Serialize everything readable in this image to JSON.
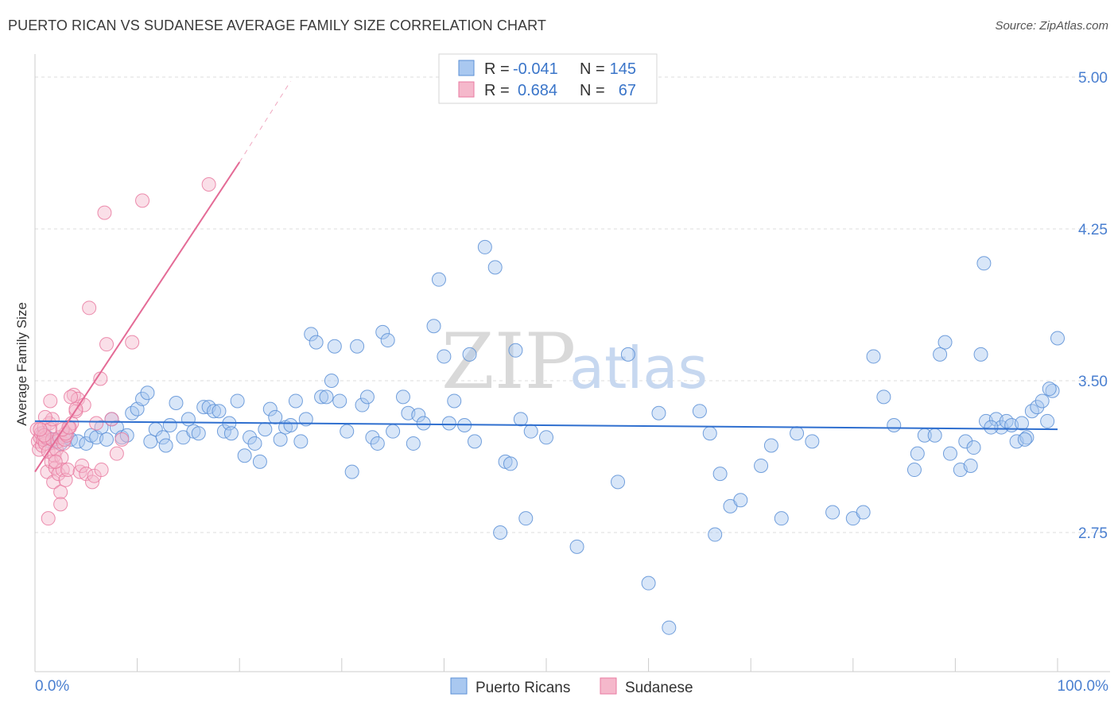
{
  "title": "PUERTO RICAN VS SUDANESE AVERAGE FAMILY SIZE CORRELATION CHART",
  "source": "Source: ZipAtlas.com",
  "watermark": {
    "zip": "ZIP",
    "atlas": "atlas"
  },
  "colors": {
    "blue_fill": "#a9c8f0",
    "blue_stroke": "#5a8fd6",
    "blue_line": "#2f6fcf",
    "pink_fill": "#f5b8cb",
    "pink_stroke": "#e97aa0",
    "pink_line": "#e46b96",
    "tick_label": "#4a7fd0",
    "grid": "#dddddd"
  },
  "legend_top": {
    "series": [
      {
        "name": "Puerto Ricans",
        "r_label": "R =",
        "r_value": "-0.041",
        "n_label": "N =",
        "n_value": "145"
      },
      {
        "name": "Sudanese",
        "r_label": "R =",
        "r_value": "0.684",
        "n_label": "N =",
        "n_value": "67"
      }
    ]
  },
  "legend_bottom": [
    "Puerto Ricans",
    "Sudanese"
  ],
  "chart_data": {
    "type": "scatter",
    "title": "PUERTO RICAN VS SUDANESE AVERAGE FAMILY SIZE CORRELATION CHART",
    "xlabel": "",
    "ylabel": "Average Family Size",
    "xlim": [
      0,
      100
    ],
    "ylim": [
      2.0,
      5.1
    ],
    "x_tick_labels": [
      "0.0%",
      "100.0%"
    ],
    "y_ticks": [
      2.75,
      3.5,
      4.25,
      5.0
    ],
    "y_tick_labels": [
      "2.75",
      "3.50",
      "4.25",
      "5.00"
    ],
    "series": [
      {
        "name": "Puerto Ricans",
        "r": -0.041,
        "n": 145,
        "trend": {
          "x": [
            0,
            100
          ],
          "y": [
            3.3,
            3.26
          ]
        },
        "points": [
          [
            0.8,
            3.24
          ],
          [
            1.2,
            3.22
          ],
          [
            1.5,
            3.2
          ],
          [
            2,
            3.21
          ],
          [
            2.5,
            3.19
          ],
          [
            3,
            3.22
          ],
          [
            3.5,
            3.21
          ],
          [
            4.2,
            3.2
          ],
          [
            5,
            3.19
          ],
          [
            5.5,
            3.23
          ],
          [
            6,
            3.22
          ],
          [
            6.5,
            3.27
          ],
          [
            7,
            3.21
          ],
          [
            7.5,
            3.31
          ],
          [
            8,
            3.27
          ],
          [
            8.5,
            3.22
          ],
          [
            9,
            3.23
          ],
          [
            9.5,
            3.34
          ],
          [
            10,
            3.36
          ],
          [
            10.5,
            3.41
          ],
          [
            11,
            3.44
          ],
          [
            11.3,
            3.2
          ],
          [
            11.8,
            3.26
          ],
          [
            12.5,
            3.22
          ],
          [
            12.8,
            3.18
          ],
          [
            13.2,
            3.28
          ],
          [
            13.8,
            3.39
          ],
          [
            14.5,
            3.22
          ],
          [
            15,
            3.31
          ],
          [
            15.5,
            3.25
          ],
          [
            16,
            3.24
          ],
          [
            16.5,
            3.37
          ],
          [
            17,
            3.37
          ],
          [
            17.5,
            3.35
          ],
          [
            18,
            3.35
          ],
          [
            18.5,
            3.25
          ],
          [
            19,
            3.29
          ],
          [
            19.2,
            3.24
          ],
          [
            19.8,
            3.4
          ],
          [
            20.5,
            3.13
          ],
          [
            21,
            3.22
          ],
          [
            21.5,
            3.19
          ],
          [
            22,
            3.1
          ],
          [
            22.5,
            3.26
          ],
          [
            23,
            3.36
          ],
          [
            23.5,
            3.32
          ],
          [
            24,
            3.21
          ],
          [
            24.5,
            3.27
          ],
          [
            25,
            3.28
          ],
          [
            25.5,
            3.4
          ],
          [
            26,
            3.2
          ],
          [
            26.5,
            3.31
          ],
          [
            27,
            3.73
          ],
          [
            27.5,
            3.69
          ],
          [
            28,
            3.42
          ],
          [
            28.5,
            3.42
          ],
          [
            29,
            3.5
          ],
          [
            29.3,
            3.67
          ],
          [
            29.8,
            3.4
          ],
          [
            30.5,
            3.25
          ],
          [
            31,
            3.05
          ],
          [
            31.5,
            3.67
          ],
          [
            32,
            3.38
          ],
          [
            32.5,
            3.42
          ],
          [
            33,
            3.22
          ],
          [
            33.5,
            3.19
          ],
          [
            34,
            3.74
          ],
          [
            34.5,
            3.7
          ],
          [
            35,
            3.25
          ],
          [
            36,
            3.42
          ],
          [
            36.5,
            3.34
          ],
          [
            37,
            3.19
          ],
          [
            37.5,
            3.33
          ],
          [
            38,
            3.29
          ],
          [
            39,
            3.77
          ],
          [
            39.5,
            4.0
          ],
          [
            40,
            3.62
          ],
          [
            40.5,
            3.29
          ],
          [
            41,
            3.4
          ],
          [
            42,
            3.28
          ],
          [
            42.5,
            3.63
          ],
          [
            43,
            3.2
          ],
          [
            44,
            4.16
          ],
          [
            45,
            4.06
          ],
          [
            45.5,
            2.75
          ],
          [
            46,
            3.1
          ],
          [
            46.5,
            3.09
          ],
          [
            47,
            3.65
          ],
          [
            47.5,
            3.31
          ],
          [
            48,
            2.82
          ],
          [
            48.5,
            3.25
          ],
          [
            50,
            3.22
          ],
          [
            53,
            2.68
          ],
          [
            57,
            3.0
          ],
          [
            58,
            3.63
          ],
          [
            60,
            2.5
          ],
          [
            61,
            3.34
          ],
          [
            62,
            2.28
          ],
          [
            65,
            3.35
          ],
          [
            66,
            3.24
          ],
          [
            66.5,
            2.74
          ],
          [
            67,
            3.04
          ],
          [
            68,
            2.88
          ],
          [
            69,
            2.91
          ],
          [
            71,
            3.08
          ],
          [
            72,
            3.18
          ],
          [
            73,
            2.82
          ],
          [
            74.5,
            3.24
          ],
          [
            76,
            3.2
          ],
          [
            78,
            2.85
          ],
          [
            80,
            2.82
          ],
          [
            81,
            2.85
          ],
          [
            82,
            3.62
          ],
          [
            83,
            3.42
          ],
          [
            84,
            3.28
          ],
          [
            86,
            3.06
          ],
          [
            86.3,
            3.14
          ],
          [
            87,
            3.23
          ],
          [
            88,
            3.23
          ],
          [
            88.5,
            3.63
          ],
          [
            89,
            3.69
          ],
          [
            89.5,
            3.14
          ],
          [
            90.5,
            3.06
          ],
          [
            91,
            3.2
          ],
          [
            91.5,
            3.08
          ],
          [
            91.8,
            3.17
          ],
          [
            92.5,
            3.63
          ],
          [
            92.8,
            4.08
          ],
          [
            93,
            3.3
          ],
          [
            94,
            3.31
          ],
          [
            94.5,
            3.27
          ],
          [
            95,
            3.3
          ],
          [
            95.5,
            3.28
          ],
          [
            96,
            3.2
          ],
          [
            96.5,
            3.29
          ],
          [
            97,
            3.22
          ],
          [
            97.5,
            3.35
          ],
          [
            98,
            3.37
          ],
          [
            98.5,
            3.4
          ],
          [
            99,
            3.3
          ],
          [
            99.5,
            3.45
          ],
          [
            100,
            3.71
          ],
          [
            99.2,
            3.46
          ],
          [
            93.5,
            3.27
          ],
          [
            96.8,
            3.21
          ]
        ]
      },
      {
        "name": "Sudanese",
        "r": 0.684,
        "n": 67,
        "trend": {
          "x": [
            0,
            20
          ],
          "y": [
            3.05,
            4.58
          ],
          "dashed_x": [
            20,
            25
          ],
          "dashed_y": [
            4.58,
            4.98
          ]
        },
        "points": [
          [
            0.2,
            3.26
          ],
          [
            0.3,
            3.2
          ],
          [
            0.4,
            3.16
          ],
          [
            0.5,
            3.22
          ],
          [
            0.6,
            3.24
          ],
          [
            0.7,
            3.18
          ],
          [
            0.8,
            3.21
          ],
          [
            0.9,
            3.27
          ],
          [
            1.0,
            3.19
          ],
          [
            1.1,
            3.22
          ],
          [
            1.2,
            3.05
          ],
          [
            1.3,
            3.15
          ],
          [
            1.4,
            3.29
          ],
          [
            1.5,
            3.26
          ],
          [
            1.6,
            3.1
          ],
          [
            1.7,
            3.21
          ],
          [
            1.8,
            3.0
          ],
          [
            1.9,
            3.13
          ],
          [
            2.0,
            3.07
          ],
          [
            2.1,
            3.16
          ],
          [
            2.2,
            3.2
          ],
          [
            2.3,
            3.04
          ],
          [
            2.4,
            3.22
          ],
          [
            2.5,
            2.95
          ],
          [
            2.6,
            3.12
          ],
          [
            2.7,
            3.06
          ],
          [
            2.8,
            3.19
          ],
          [
            2.9,
            3.21
          ],
          [
            3.0,
            3.01
          ],
          [
            3.1,
            3.23
          ],
          [
            3.2,
            3.06
          ],
          [
            3.4,
            3.27
          ],
          [
            3.6,
            3.29
          ],
          [
            3.8,
            3.43
          ],
          [
            4.0,
            3.35
          ],
          [
            4.2,
            3.41
          ],
          [
            4.4,
            3.05
          ],
          [
            4.6,
            3.08
          ],
          [
            4.8,
            3.38
          ],
          [
            5.0,
            3.04
          ],
          [
            5.3,
            3.86
          ],
          [
            5.6,
            3.0
          ],
          [
            5.8,
            3.03
          ],
          [
            6.0,
            3.29
          ],
          [
            6.4,
            3.51
          ],
          [
            6.8,
            4.33
          ],
          [
            7.0,
            3.68
          ],
          [
            7.5,
            3.31
          ],
          [
            8.0,
            3.14
          ],
          [
            8.5,
            3.21
          ],
          [
            9.5,
            3.69
          ],
          [
            10.5,
            4.39
          ],
          [
            17,
            4.47
          ],
          [
            1.5,
            3.4
          ],
          [
            2.0,
            3.1
          ],
          [
            2.5,
            2.89
          ],
          [
            1.3,
            2.82
          ],
          [
            0.9,
            3.23
          ],
          [
            3.5,
            3.42
          ],
          [
            4.0,
            3.36
          ],
          [
            3.0,
            3.24
          ],
          [
            2.7,
            3.26
          ],
          [
            1.7,
            3.31
          ],
          [
            0.5,
            3.26
          ],
          [
            6.5,
            3.06
          ],
          [
            3.3,
            3.27
          ],
          [
            1.0,
            3.32
          ]
        ]
      }
    ],
    "legend_position": "top-center"
  }
}
